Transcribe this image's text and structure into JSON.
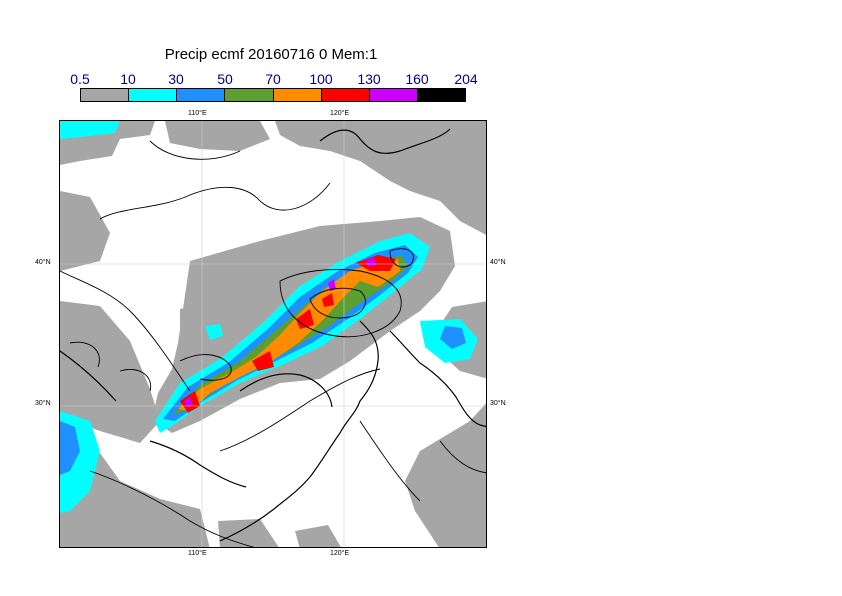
{
  "title": "Precip ecmf 20160716 0 Mem:1",
  "colorbar": {
    "levels": [
      "0.5",
      "10",
      "30",
      "50",
      "70",
      "100",
      "130",
      "160",
      "204"
    ],
    "colors": [
      "#a6a6a6",
      "#00ffff",
      "#1e90ff",
      "#5c9e32",
      "#ff8c00",
      "#ff0000",
      "#cc00ff",
      "#000000"
    ]
  },
  "map": {
    "lon_labels": [
      "110°E",
      "120°E"
    ],
    "lat_labels": [
      "40°N",
      "30°N"
    ]
  }
}
